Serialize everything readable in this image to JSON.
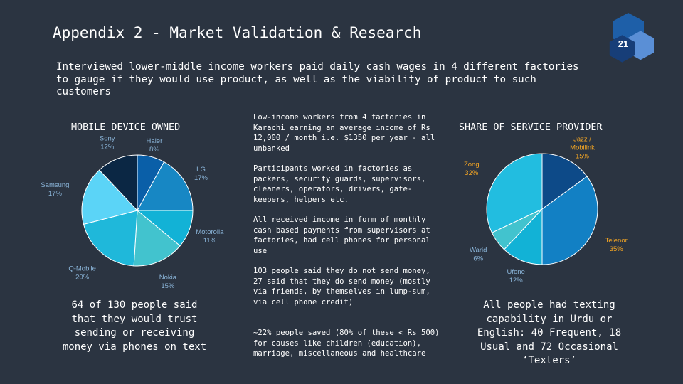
{
  "slide": {
    "title": "Appendix 2 - Market Validation & Research",
    "page_number": "21",
    "intro": "Interviewed lower-middle income workers paid daily cash wages in 4 different factories to gauge if they would use product, as well as the viability of product to such customers"
  },
  "center_points": [
    "Low-income workers from 4 factories in Karachi earning an average income of Rs 12,000 / month i.e. $1350 per year - all unbanked",
    "Participants worked in factories as packers, security guards, supervisors, cleaners, operators, drivers, gate-keepers, helpers etc.",
    "All received income in form of monthly cash based payments from supervisors at factories, had cell phones for personal use",
    "103 people said they do not send money, 27 said that they do send money (mostly via friends, by themselves in lump-sum, via cell phone credit)",
    "~22% people saved (80% of these < Rs 500) for causes like children (education), marriage, miscellaneous and healthcare"
  ],
  "left_summary": "64 of 130 people said that they would trust sending or receiving money via phones on text",
  "right_summary": "All people had texting capability in Urdu or English: 40 Frequent, 18 Usual and 72 Occasional ‘Texters’",
  "colors": {
    "background": "#2b3441",
    "label_light": "#8ab4d8",
    "label_orange": "#f5a623"
  },
  "chart_data": [
    {
      "type": "pie",
      "title": "MOBILE DEVICE OWNED",
      "legend": "none (data labels outside slices)",
      "categories": [
        "Haier",
        "LG",
        "Motorolla",
        "Nokia",
        "Q-Mobile",
        "Samsung",
        "Sony"
      ],
      "values": [
        8,
        17,
        11,
        15,
        20,
        17,
        12
      ],
      "labels": [
        "Haier\n8%",
        "LG\n17%",
        "Motorolla\n11%",
        "Nokia\n15%",
        "Q-Mobile\n20%",
        "Samsung\n17%",
        "Sony\n12%"
      ],
      "colors": [
        "#0a5fa8",
        "#1787c4",
        "#12b2d6",
        "#42c3ce",
        "#1fb8da",
        "#5bd4f7",
        "#0b2744"
      ]
    },
    {
      "type": "pie",
      "title": "SHARE OF SERVICE PROVIDER",
      "legend": "none (data labels outside slices)",
      "categories": [
        "Jazz / Mobilink",
        "Telenor",
        "Ufone",
        "Warid",
        "Zong"
      ],
      "values": [
        15,
        35,
        12,
        6,
        32
      ],
      "labels": [
        "Jazz /\nMobilink\n15%",
        "Telenor\n35%",
        "Ufone\n12%",
        "Warid\n6%",
        "Zong\n32%"
      ],
      "label_colors": [
        "orange",
        "orange",
        "light",
        "light",
        "orange"
      ],
      "colors": [
        "#0d4a88",
        "#1280c4",
        "#12b2d6",
        "#42c3ce",
        "#22bde0"
      ]
    }
  ]
}
